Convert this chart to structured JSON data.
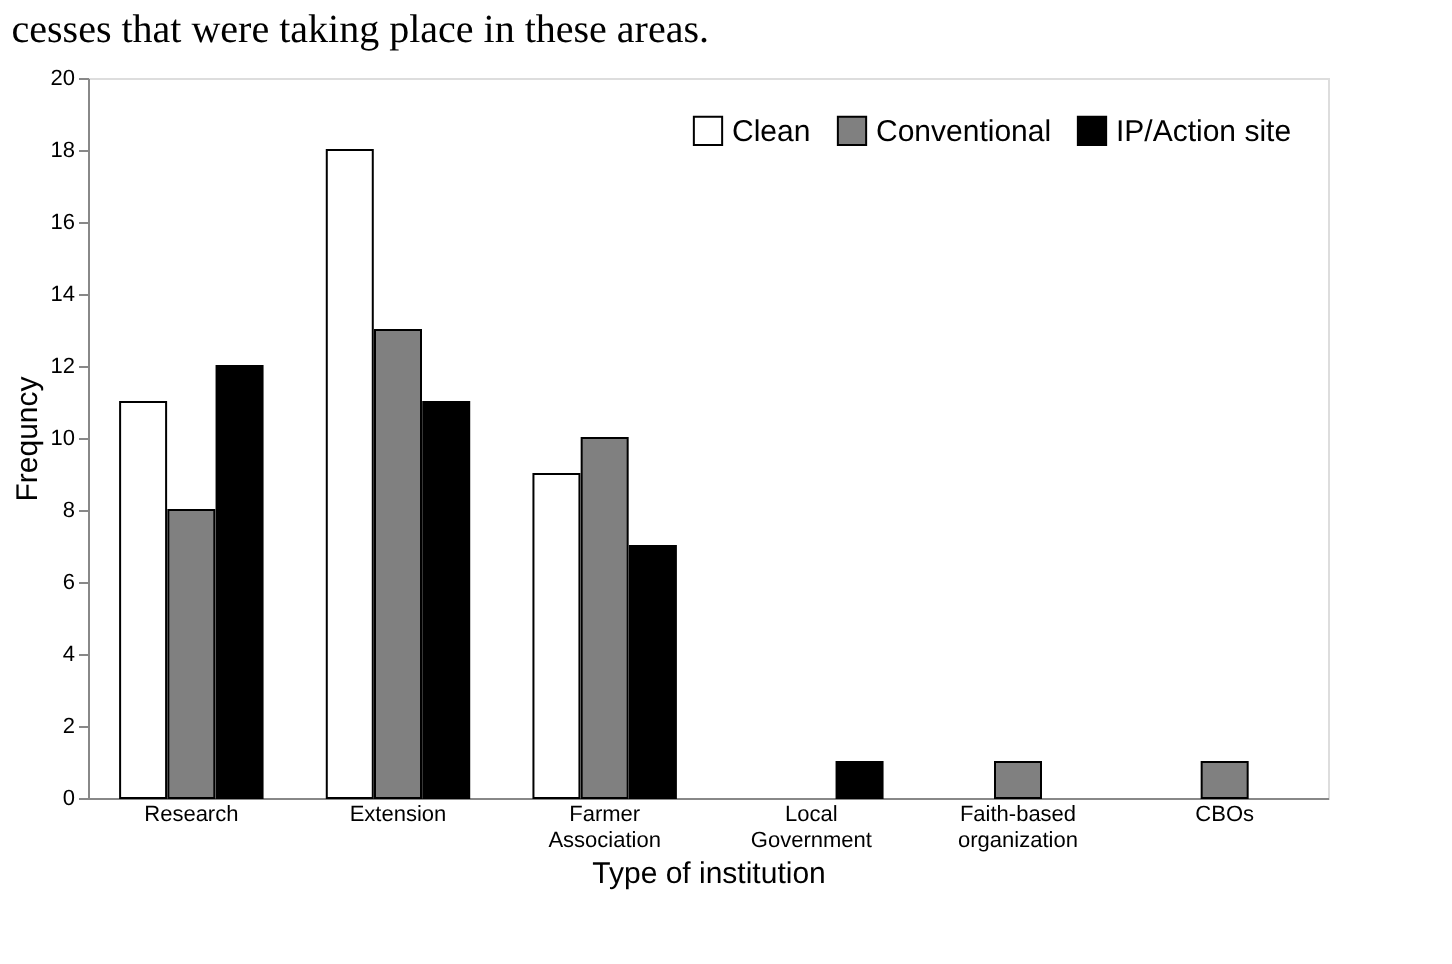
{
  "chart_data": {
    "type": "bar",
    "annotations": [
      "cesses that were taking place in these areas."
    ],
    "xlabel": "Type of institution",
    "ylabel": "Frequncy",
    "categories": [
      "Research",
      "Extension",
      "Farmer Association",
      "Local Government",
      "Faith-based organization",
      "CBOs"
    ],
    "series": [
      {
        "name": "Clean",
        "color": "#ffffff",
        "values": [
          11,
          18,
          9,
          null,
          null,
          null
        ]
      },
      {
        "name": "Conventional",
        "color": "#808080",
        "values": [
          8,
          13,
          10,
          null,
          1,
          1
        ]
      },
      {
        "name": "IP/Action site",
        "color": "#000000",
        "values": [
          12,
          11,
          7,
          1,
          null,
          null
        ]
      }
    ],
    "ylim": [
      0,
      20
    ],
    "yticks": [
      0,
      2,
      4,
      6,
      8,
      10,
      12,
      14,
      16,
      18,
      20
    ],
    "grid": false,
    "legend": "top right"
  }
}
